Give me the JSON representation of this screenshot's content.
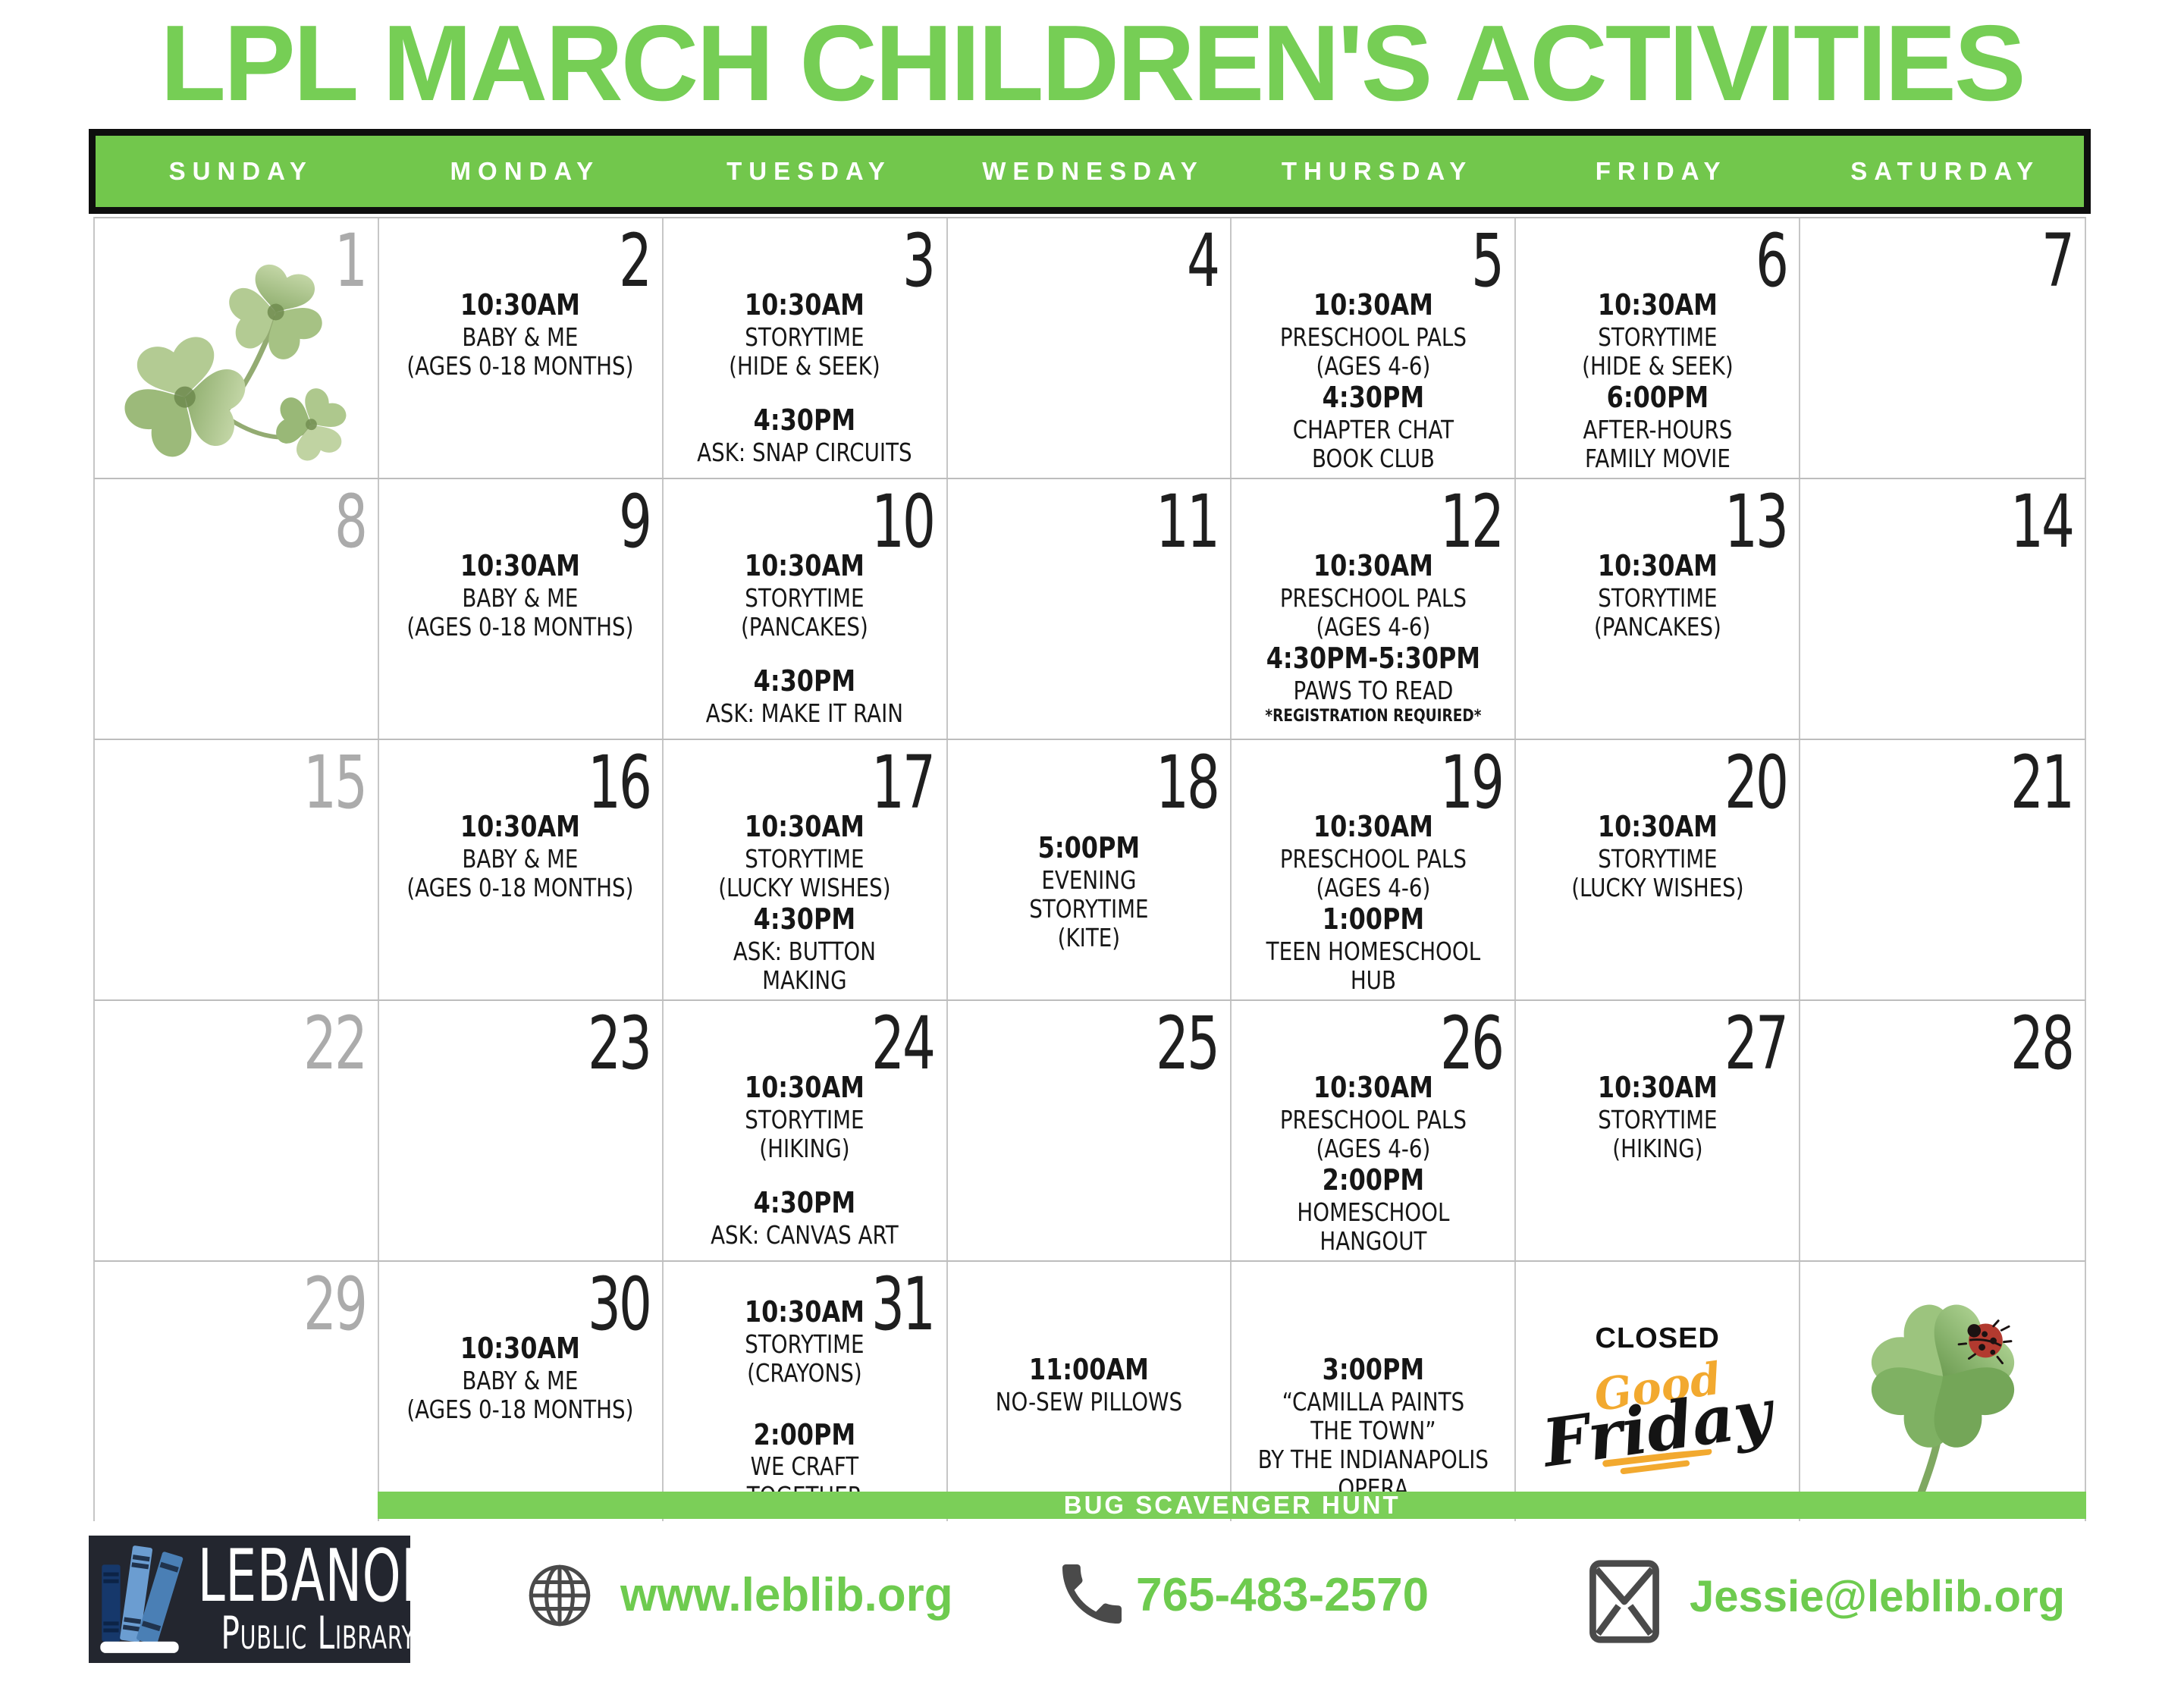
{
  "title": "LPL MARCH CHILDREN'S ACTIVITIES",
  "banner": "BUG SCAVENGER HUNT",
  "weekdays": [
    "SUNDAY",
    "MONDAY",
    "TUESDAY",
    "WEDNESDAY",
    "THURSDAY",
    "FRIDAY",
    "SATURDAY"
  ],
  "colors": {
    "green": "#72c74c",
    "title-green": "#76ce55",
    "banner-green": "#7bcf58",
    "text-green": "#6ecb4f",
    "gold": "#f2a92f",
    "gray-number": "#ababab",
    "ink": "#161616",
    "icon-gray": "#4a4a4a",
    "logo-bg": "#23262f",
    "logo-blue-dark": "#16386b",
    "logo-blue-mid": "#4a7fb5",
    "logo-blue-light": "#6b9dd1"
  },
  "weeks": [
    [
      {
        "num": "1",
        "numGray": true,
        "image": "shamrock"
      },
      {
        "num": "2",
        "events": [
          {
            "time": "10:30AM",
            "lines": [
              "BABY & ME",
              "(AGES 0-18 MONTHS)"
            ]
          }
        ]
      },
      {
        "num": "3",
        "events": [
          {
            "time": "10:30AM",
            "lines": [
              "STORYTIME",
              "(HIDE & SEEK)"
            ]
          },
          {
            "time": "4:30PM",
            "lines": [
              "ASK: SNAP CIRCUITS"
            ]
          }
        ]
      },
      {
        "num": "4"
      },
      {
        "num": "5",
        "events": [
          {
            "time": "10:30AM",
            "lines": [
              "PRESCHOOL PALS",
              "(AGES 4-6)"
            ]
          },
          {
            "time": "4:30PM",
            "lines": [
              "CHAPTER CHAT",
              "BOOK CLUB"
            ]
          }
        ]
      },
      {
        "num": "6",
        "events": [
          {
            "time": "10:30AM",
            "lines": [
              "STORYTIME",
              "(HIDE & SEEK)"
            ]
          },
          {
            "time": "6:00PM",
            "lines": [
              "AFTER-HOURS",
              "FAMILY MOVIE"
            ]
          }
        ]
      },
      {
        "num": "7"
      }
    ],
    [
      {
        "num": "8",
        "numGray": true
      },
      {
        "num": "9",
        "events": [
          {
            "time": "10:30AM",
            "lines": [
              "BABY & ME",
              "(AGES 0-18 MONTHS)"
            ]
          }
        ]
      },
      {
        "num": "10",
        "events": [
          {
            "time": "10:30AM",
            "lines": [
              "STORYTIME",
              "(PANCAKES)"
            ]
          },
          {
            "time": "4:30PM",
            "lines": [
              "ASK: MAKE IT RAIN"
            ]
          }
        ]
      },
      {
        "num": "11"
      },
      {
        "num": "12",
        "events": [
          {
            "time": "10:30AM",
            "lines": [
              "PRESCHOOL PALS",
              "(AGES 4-6)"
            ]
          },
          {
            "time": "4:30PM-5:30PM",
            "lines": [
              "PAWS TO READ"
            ],
            "note": "*REGISTRATION REQUIRED*"
          }
        ]
      },
      {
        "num": "13",
        "events": [
          {
            "time": "10:30AM",
            "lines": [
              "STORYTIME",
              "(PANCAKES)"
            ]
          }
        ]
      },
      {
        "num": "14"
      }
    ],
    [
      {
        "num": "15",
        "numGray": true
      },
      {
        "num": "16",
        "events": [
          {
            "time": "10:30AM",
            "lines": [
              "BABY & ME",
              "(AGES 0-18 MONTHS)"
            ]
          }
        ]
      },
      {
        "num": "17",
        "events": [
          {
            "time": "10:30AM",
            "lines": [
              "STORYTIME",
              "(LUCKY WISHES)"
            ]
          },
          {
            "time": "4:30PM",
            "lines": [
              "ASK: BUTTON",
              "MAKING"
            ]
          }
        ]
      },
      {
        "num": "18",
        "valign": "mid",
        "events": [
          {
            "time": "5:00PM",
            "lines": [
              "EVENING",
              "STORYTIME",
              "(KITE)"
            ]
          }
        ]
      },
      {
        "num": "19",
        "events": [
          {
            "time": "10:30AM",
            "lines": [
              "PRESCHOOL PALS",
              "(AGES 4-6)"
            ]
          },
          {
            "time": "1:00PM",
            "lines": [
              "TEEN HOMESCHOOL",
              "HUB"
            ]
          }
        ]
      },
      {
        "num": "20",
        "events": [
          {
            "time": "10:30AM",
            "lines": [
              "STORYTIME",
              "(LUCKY WISHES)"
            ]
          }
        ]
      },
      {
        "num": "21"
      }
    ],
    [
      {
        "num": "22",
        "numGray": true
      },
      {
        "num": "23"
      },
      {
        "num": "24",
        "events": [
          {
            "time": "10:30AM",
            "lines": [
              "STORYTIME",
              "(HIKING)"
            ]
          },
          {
            "time": "4:30PM",
            "lines": [
              "ASK: CANVAS ART"
            ]
          }
        ]
      },
      {
        "num": "25"
      },
      {
        "num": "26",
        "events": [
          {
            "time": "10:30AM",
            "lines": [
              "PRESCHOOL PALS",
              "(AGES 4-6)"
            ]
          },
          {
            "time": "2:00PM",
            "lines": [
              "HOMESCHOOL",
              "HANGOUT"
            ]
          }
        ]
      },
      {
        "num": "27",
        "events": [
          {
            "time": "10:30AM",
            "lines": [
              "STORYTIME",
              "(HIKING)"
            ]
          }
        ]
      },
      {
        "num": "28"
      }
    ],
    [
      {
        "num": "29",
        "numGray": true
      },
      {
        "num": "30",
        "events": [
          {
            "time": "10:30AM",
            "lines": [
              "BABY & ME",
              "(AGES 0-18 MONTHS)"
            ]
          }
        ]
      },
      {
        "num": "31",
        "tight": true,
        "events": [
          {
            "time": "10:30AM",
            "lines": [
              "STORYTIME",
              "(CRAYONS)"
            ]
          },
          {
            "time": "2:00PM",
            "lines": [
              "WE CRAFT",
              "TOGETHER"
            ]
          }
        ]
      },
      {
        "valign": "mid",
        "events": [
          {
            "time": "11:00AM",
            "lines": [
              "NO-SEW PILLOWS"
            ]
          }
        ]
      },
      {
        "valign": "mid",
        "events": [
          {
            "time": "3:00PM",
            "lines": [
              "“CAMILLA PAINTS",
              "THE TOWN”",
              "BY THE INDIANAPOLIS",
              "OPERA"
            ]
          }
        ]
      },
      {
        "closed": {
          "label": "CLOSED",
          "script_top": "Good",
          "script_bottom": "Friday"
        }
      },
      {
        "image": "clover4"
      }
    ]
  ],
  "footer": {
    "logo_line1": "LEBANON",
    "logo_line2": "Public Library",
    "website": "www.leblib.org",
    "phone": "765-483-2570",
    "email": "Jessie@leblib.org"
  }
}
